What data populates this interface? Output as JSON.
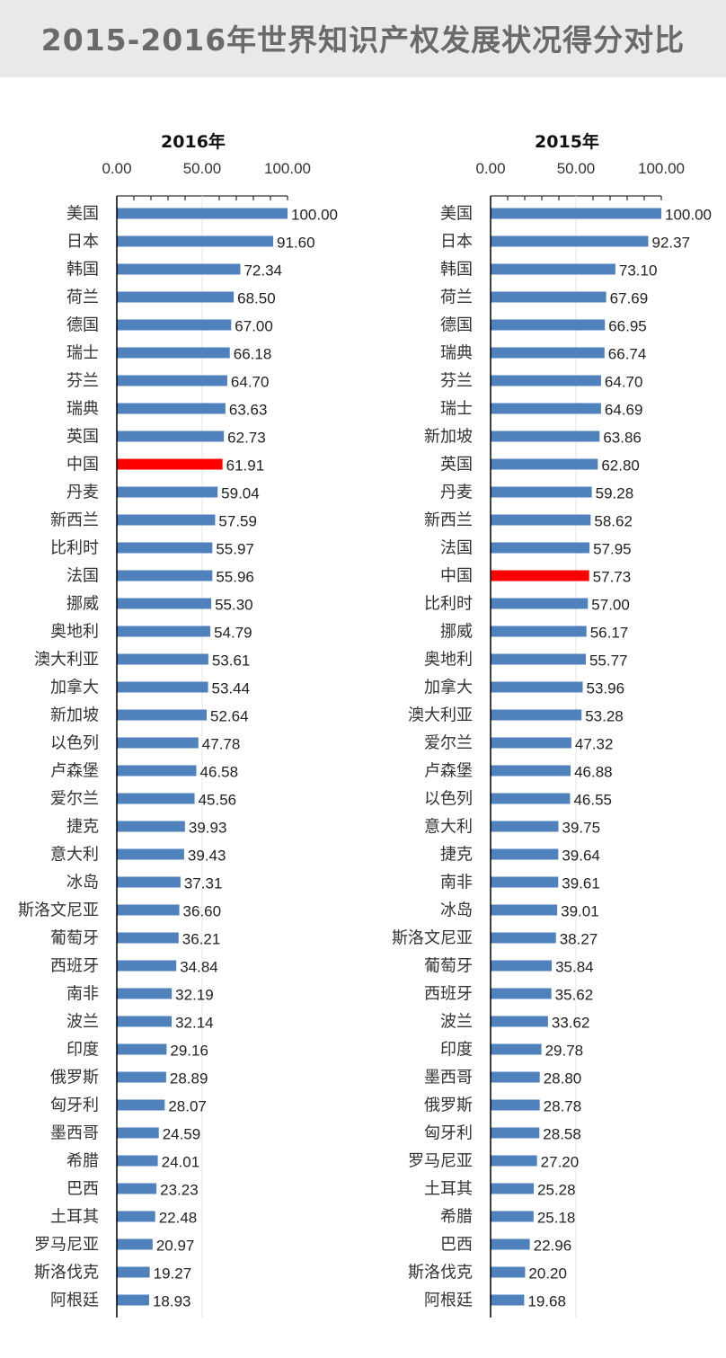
{
  "page": {
    "title": "2015-2016年世界知识产权发展状况得分对比"
  },
  "colors": {
    "bar": "#4f81bd",
    "highlight_bar": "#ff0000",
    "title_background": "#e9e9e9",
    "title_text": "#6a6a6a",
    "axis": "#000000"
  },
  "chart_data": [
    {
      "type": "bar",
      "orientation": "horizontal",
      "title": "2016年",
      "xlim": [
        0,
        100
      ],
      "xticks": [
        "0.00",
        "50.00",
        "100.00"
      ],
      "xaxis_position": "top",
      "highlight": "中国",
      "categories": [
        "美国",
        "日本",
        "韩国",
        "荷兰",
        "德国",
        "瑞士",
        "芬兰",
        "瑞典",
        "英国",
        "中国",
        "丹麦",
        "新西兰",
        "比利时",
        "法国",
        "挪威",
        "奥地利",
        "澳大利亚",
        "加拿大",
        "新加坡",
        "以色列",
        "卢森堡",
        "爱尔兰",
        "捷克",
        "意大利",
        "冰岛",
        "斯洛文尼亚",
        "葡萄牙",
        "西班牙",
        "南非",
        "波兰",
        "印度",
        "俄罗斯",
        "匈牙利",
        "墨西哥",
        "希腊",
        "巴西",
        "土耳其",
        "罗马尼亚",
        "斯洛伐克",
        "阿根廷"
      ],
      "values": [
        100.0,
        91.6,
        72.34,
        68.5,
        67.0,
        66.18,
        64.7,
        63.63,
        62.73,
        61.91,
        59.04,
        57.59,
        55.97,
        55.96,
        55.3,
        54.79,
        53.61,
        53.44,
        52.64,
        47.78,
        46.58,
        45.56,
        39.93,
        39.43,
        37.31,
        36.6,
        36.21,
        34.84,
        32.19,
        32.14,
        29.16,
        28.89,
        28.07,
        24.59,
        24.01,
        23.23,
        22.48,
        20.97,
        19.27,
        18.93
      ],
      "value_labels": [
        "100.00",
        "91.60",
        "72.34",
        "68.50",
        "67.00",
        "66.18",
        "64.70",
        "63.63",
        "62.73",
        "61.91",
        "59.04",
        "57.59",
        "55.97",
        "55.96",
        "55.30",
        "54.79",
        "53.61",
        "53.44",
        "52.64",
        "47.78",
        "46.58",
        "45.56",
        "39.93",
        "39.43",
        "37.31",
        "36.60",
        "36.21",
        "34.84",
        "32.19",
        "32.14",
        "29.16",
        "28.89",
        "28.07",
        "24.59",
        "24.01",
        "23.23",
        "22.48",
        "20.97",
        "19.27",
        "18.93"
      ]
    },
    {
      "type": "bar",
      "orientation": "horizontal",
      "title": "2015年",
      "xlim": [
        0,
        100
      ],
      "xticks": [
        "0.00",
        "50.00",
        "100.00"
      ],
      "xaxis_position": "top",
      "highlight": "中国",
      "categories": [
        "美国",
        "日本",
        "韩国",
        "荷兰",
        "德国",
        "瑞典",
        "芬兰",
        "瑞士",
        "新加坡",
        "英国",
        "丹麦",
        "新西兰",
        "法国",
        "中国",
        "比利时",
        "挪威",
        "奥地利",
        "加拿大",
        "澳大利亚",
        "爱尔兰",
        "卢森堡",
        "以色列",
        "意大利",
        "捷克",
        "南非",
        "冰岛",
        "斯洛文尼亚",
        "葡萄牙",
        "西班牙",
        "波兰",
        "印度",
        "墨西哥",
        "俄罗斯",
        "匈牙利",
        "罗马尼亚",
        "土耳其",
        "希腊",
        "巴西",
        "斯洛伐克",
        "阿根廷"
      ],
      "values": [
        100.0,
        92.37,
        73.1,
        67.69,
        66.95,
        66.74,
        64.7,
        64.69,
        63.86,
        62.8,
        59.28,
        58.62,
        57.95,
        57.73,
        57.0,
        56.17,
        55.77,
        53.96,
        53.28,
        47.32,
        46.88,
        46.55,
        39.75,
        39.64,
        39.61,
        39.01,
        38.27,
        35.84,
        35.62,
        33.62,
        29.78,
        28.8,
        28.78,
        28.58,
        27.2,
        25.28,
        25.18,
        22.96,
        20.2,
        19.68
      ],
      "value_labels": [
        "100.00",
        "92.37",
        "73.10",
        "67.69",
        "66.95",
        "66.74",
        "64.70",
        "64.69",
        "63.86",
        "62.80",
        "59.28",
        "58.62",
        "57.95",
        "57.73",
        "57.00",
        "56.17",
        "55.77",
        "53.96",
        "53.28",
        "47.32",
        "46.88",
        "46.55",
        "39.75",
        "39.64",
        "39.61",
        "39.01",
        "38.27",
        "35.84",
        "35.62",
        "33.62",
        "29.78",
        "28.80",
        "28.78",
        "28.58",
        "27.20",
        "25.28",
        "25.18",
        "22.96",
        "20.20",
        "19.68"
      ]
    }
  ]
}
